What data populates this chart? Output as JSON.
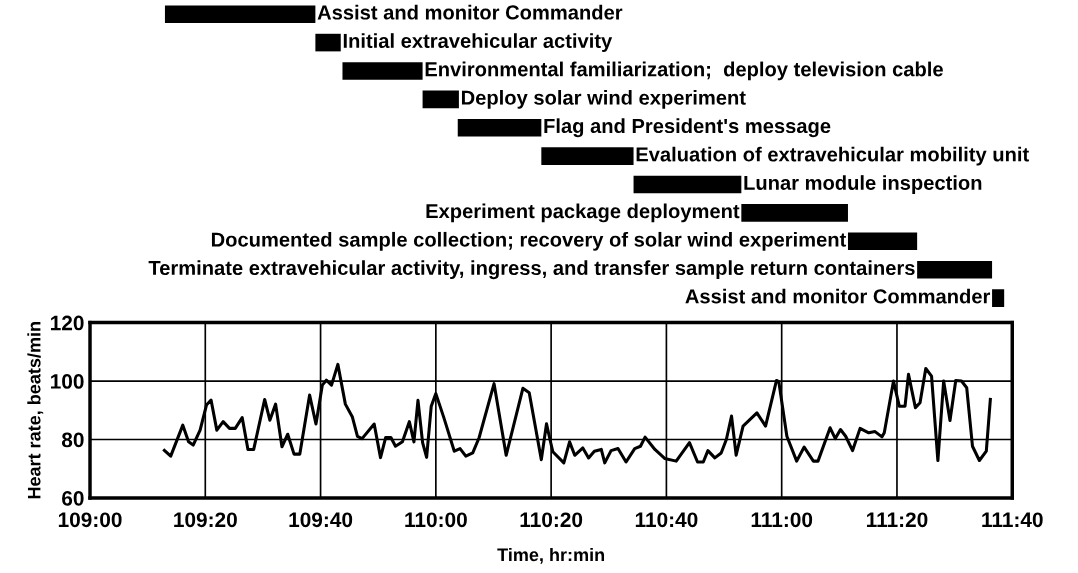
{
  "chart_data": [
    {
      "type": "bar",
      "orientation": "horizontal",
      "tick_labels": false,
      "grid": false,
      "categories": [
        "Assist and monitor Commander",
        "Initial extravehicular activity",
        "Environmental familiarization;  deploy television cable",
        "Deploy solar wind experiment",
        "Flag and President's message",
        "Evaluation of extravehicular mobility unit",
        "Lunar module inspection",
        "Experiment package deployment",
        "Documented sample collection; recovery of solar wind experiment",
        "Terminate extravehicular activity, ingress, and transfer sample return containers",
        "Assist and monitor Commander"
      ],
      "base": [
        6553.0,
        6579.1,
        6583.8,
        6597.7,
        6603.8,
        6618.3,
        6634.3,
        6653.0,
        6671.5,
        6683.5,
        6696.5
      ],
      "values": [
        26.1,
        4.4,
        13.9,
        6.3,
        14.5,
        16.0,
        18.7,
        18.5,
        12.0,
        13.0,
        2.1
      ],
      "color": "#000000",
      "xlim": [
        6540,
        6700
      ]
    },
    {
      "type": "line",
      "xlabel": "Time, hr:min",
      "ylabel": "Heart rate, beats/min",
      "grid": true,
      "marker": "none",
      "line_style": "solid",
      "xlim": [
        6540,
        6700
      ],
      "xticks": [
        {
          "value": 6540,
          "label": "109:00"
        },
        {
          "value": 6560,
          "label": "109:20"
        },
        {
          "value": 6580,
          "label": "109:40"
        },
        {
          "value": 6600,
          "label": "110:00"
        },
        {
          "value": 6620,
          "label": "110:20"
        },
        {
          "value": 6640,
          "label": "110:40"
        },
        {
          "value": 6660,
          "label": "111:00"
        },
        {
          "value": 6680,
          "label": "111:20"
        },
        {
          "value": 6700,
          "label": "111:40"
        }
      ],
      "ylim": [
        60,
        120
      ],
      "yticks": [
        60,
        80,
        100,
        120
      ],
      "series": [
        {
          "color": "#000000",
          "x": [
            6552.9,
            6554.0,
            6556.1,
            6557.1,
            6557.9,
            6559.1,
            6560.2,
            6561.0,
            6562.0,
            6563.1,
            6564.2,
            6565.2,
            6566.4,
            6567.4,
            6568.4,
            6570.3,
            6571.2,
            6572.2,
            6573.3,
            6574.3,
            6575.4,
            6576.4,
            6578.1,
            6579.2,
            6580.3,
            6581.0,
            6581.9,
            6583.0,
            6584.3,
            6585.5,
            6586.4,
            6587.2,
            6589.3,
            6590.4,
            6591.3,
            6592.2,
            6593.0,
            6594.2,
            6595.4,
            6596.2,
            6596.9,
            6597.7,
            6598.4,
            6599.2,
            6600.0,
            6601.4,
            6603.2,
            6604.2,
            6605.2,
            6606.4,
            6607.5,
            6610.1,
            6612.2,
            6615.1,
            6616.2,
            6618.3,
            6619.2,
            6619.8,
            6620.3,
            6622.2,
            6623.2,
            6624.1,
            6625.5,
            6626.5,
            6627.5,
            6628.7,
            6629.3,
            6630.4,
            6631.6,
            6633.0,
            6634.5,
            6635.5,
            6636.3,
            6638.0,
            6639.7,
            6641.7,
            6644.0,
            6645.4,
            6646.4,
            6647.2,
            6648.4,
            6649.5,
            6650.4,
            6651.3,
            6652.1,
            6653.3,
            6655.7,
            6657.2,
            6659.1,
            6659.5,
            6660.9,
            6662.6,
            6663.9,
            6665.5,
            6666.3,
            6668.4,
            6669.3,
            6670.2,
            6671.1,
            6672.3,
            6673.6,
            6675.1,
            6676.2,
            6677.4,
            6677.8,
            6679.4,
            6680.4,
            6681.4,
            6682.0,
            6683.2,
            6684.0,
            6685.0,
            6686.0,
            6687.1,
            6688.1,
            6689.2,
            6690.2,
            6691.2,
            6692.1,
            6693.1,
            6694.3,
            6695.5,
            6696.2
          ],
          "values": [
            76.3,
            74.3,
            84.9,
            79.2,
            78.1,
            83.2,
            91.8,
            93.5,
            83.2,
            86.1,
            83.8,
            83.8,
            87.5,
            76.6,
            76.6,
            93.7,
            86.6,
            92.1,
            77.5,
            81.8,
            75.0,
            75.0,
            95.2,
            85.3,
            98.6,
            100.3,
            98.6,
            105.7,
            92.1,
            87.8,
            81.1,
            80.3,
            85.3,
            73.8,
            80.7,
            80.7,
            77.7,
            79.2,
            86.1,
            79.2,
            93.4,
            78.9,
            73.9,
            91.4,
            95.7,
            87.4,
            76.0,
            76.9,
            74.3,
            75.4,
            80.6,
            99.1,
            74.6,
            97.5,
            96.0,
            73.1,
            85.4,
            80.0,
            75.8,
            72.0,
            79.2,
            74.6,
            77.1,
            73.7,
            76.0,
            76.6,
            72.0,
            76.2,
            76.9,
            72.3,
            76.9,
            77.7,
            80.8,
            76.6,
            73.5,
            72.6,
            78.9,
            72.3,
            72.3,
            76.2,
            73.7,
            75.4,
            80.0,
            88.0,
            74.6,
            84.6,
            89.1,
            84.6,
            100.2,
            99.8,
            81.1,
            72.6,
            77.4,
            72.6,
            72.6,
            84.0,
            80.3,
            83.4,
            81.1,
            76.2,
            83.8,
            82.3,
            82.7,
            80.9,
            82.3,
            100.0,
            91.4,
            91.4,
            102.3,
            90.9,
            92.6,
            104.3,
            101.7,
            72.8,
            100.0,
            86.5,
            100.2,
            100.0,
            97.7,
            77.7,
            72.8,
            76.0,
            93.7
          ]
        }
      ]
    }
  ]
}
